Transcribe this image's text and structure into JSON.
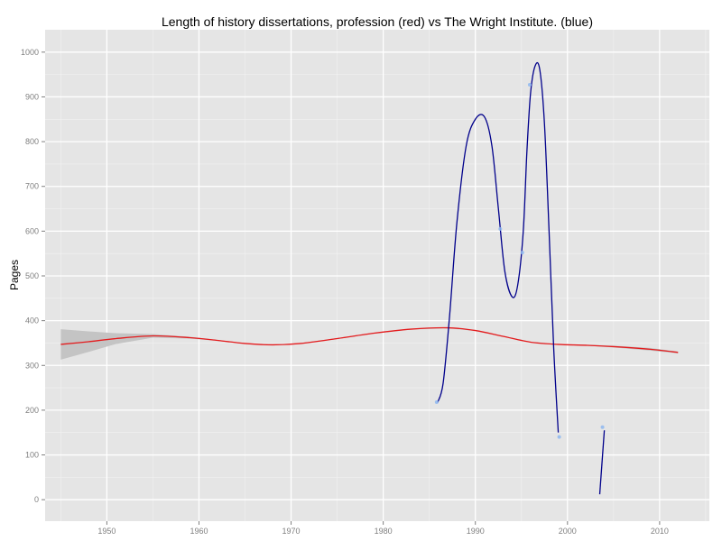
{
  "chart_data": {
    "type": "line",
    "title": "Length of history dissertations, profession (red) vs The Wright Institute. (blue)",
    "xlabel": "",
    "ylabel": "Pages",
    "xlim": [
      1943.3,
      2015.4
    ],
    "ylim": [
      -48,
      1050
    ],
    "x_ticks": [
      1950,
      1960,
      1970,
      1980,
      1990,
      2000,
      2010
    ],
    "y_ticks": [
      0,
      100,
      200,
      300,
      400,
      500,
      600,
      700,
      800,
      900,
      1000
    ],
    "grid": true,
    "legend": "none",
    "colors": {
      "panel": "#e5e5e5",
      "grid_major": "#ffffff",
      "grid_minor": "#f2f2f2",
      "profession": "#e41a1c",
      "confidence_band": "#c4c4c4",
      "institute_line": "#00008b",
      "institute_points": "#8fb8f0"
    },
    "series": [
      {
        "key": "profession",
        "x": [
          1945,
          1948,
          1951,
          1955,
          1959,
          1962,
          1965,
          1968,
          1971,
          1975,
          1979,
          1983,
          1987,
          1990,
          1993,
          1996,
          1999,
          2002,
          2005,
          2009,
          2012
        ],
        "values": [
          347,
          353,
          360,
          366,
          362,
          356,
          349,
          346,
          349,
          360,
          372,
          381,
          384,
          378,
          365,
          352,
          347,
          345,
          342,
          336,
          329
        ],
        "band_upper": [
          381,
          376,
          372,
          370,
          364,
          357,
          350,
          347,
          350,
          361,
          373,
          382,
          385,
          379,
          366,
          353,
          348,
          346,
          344,
          339,
          331
        ],
        "band_lower": [
          313,
          330,
          348,
          362,
          360,
          355,
          348,
          345,
          348,
          359,
          371,
          380,
          383,
          377,
          364,
          351,
          346,
          344,
          340,
          333,
          327
        ]
      },
      {
        "key": "institute-smooth-1",
        "x": [
          1985.9,
          1986.5,
          1987.2,
          1988,
          1989,
          1990,
          1991,
          1991.8,
          1992.5,
          1993.2,
          1994,
          1994.6,
          1995.2,
          1995.6,
          1996,
          1996.5,
          1997,
          1997.5,
          1998,
          1998.5,
          1999
        ],
        "values": [
          217,
          260,
          410,
          620,
          790,
          850,
          855,
          790,
          650,
          510,
          453,
          480,
          600,
          780,
          910,
          970,
          960,
          840,
          600,
          340,
          150
        ]
      },
      {
        "key": "institute-smooth-2",
        "x": [
          2003.5,
          2004
        ],
        "values": [
          12,
          155
        ]
      },
      {
        "key": "institute-points",
        "x": [
          1985.8,
          1992.7,
          1995.1,
          1995.9,
          1999.1,
          2003.8
        ],
        "values": [
          218,
          605,
          552,
          927,
          140,
          162
        ]
      }
    ]
  }
}
